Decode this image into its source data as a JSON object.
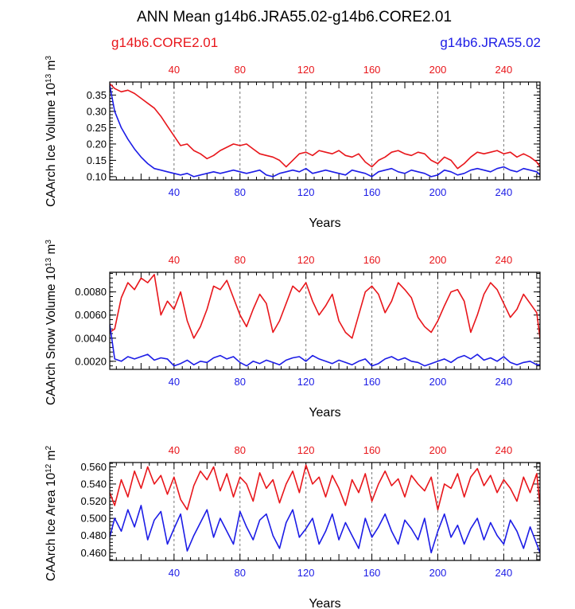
{
  "title": "ANN Mean g14b6.JRA55.02-g14b6.CORE2.01",
  "legend": {
    "left": "g14b6.CORE2.01",
    "right": "g14b6.JRA55.02"
  },
  "colors": {
    "red": "#e8161b",
    "blue": "#1c1ce6",
    "grid": "#777777"
  },
  "chart_data": [
    {
      "type": "line",
      "ylabel_main": "CAArch Ice Volume 10",
      "ylabel_exp": "13",
      "ylabel_unit": " m",
      "ylabel_unit_exp": "3",
      "xlabel": "Years",
      "xlim": [
        1,
        262
      ],
      "ylim": [
        0.09,
        0.39
      ],
      "yticks": [
        0.1,
        0.15,
        0.2,
        0.25,
        0.3,
        0.35
      ],
      "ytick_labels": [
        "0.10",
        "0.15",
        "0.20",
        "0.25",
        "0.30",
        "0.35"
      ],
      "xticks": [
        40,
        80,
        120,
        160,
        200,
        240
      ],
      "xtick_labels": [
        "40",
        "80",
        "120",
        "160",
        "200",
        "240"
      ],
      "series": [
        {
          "name": "g14b6.CORE2.01",
          "color": "red",
          "x": [
            1,
            4,
            8,
            12,
            16,
            20,
            24,
            28,
            32,
            36,
            40,
            44,
            48,
            52,
            56,
            60,
            64,
            68,
            72,
            76,
            80,
            84,
            88,
            92,
            96,
            100,
            104,
            108,
            112,
            116,
            120,
            124,
            128,
            132,
            136,
            140,
            144,
            148,
            152,
            156,
            160,
            164,
            168,
            172,
            176,
            180,
            184,
            188,
            192,
            196,
            200,
            204,
            208,
            212,
            216,
            220,
            224,
            228,
            232,
            236,
            240,
            244,
            248,
            252,
            256,
            260,
            262
          ],
          "values": [
            0.385,
            0.37,
            0.36,
            0.365,
            0.355,
            0.34,
            0.325,
            0.31,
            0.285,
            0.255,
            0.225,
            0.195,
            0.2,
            0.18,
            0.17,
            0.155,
            0.165,
            0.18,
            0.19,
            0.2,
            0.195,
            0.2,
            0.185,
            0.17,
            0.165,
            0.16,
            0.15,
            0.13,
            0.15,
            0.17,
            0.175,
            0.165,
            0.18,
            0.175,
            0.17,
            0.18,
            0.165,
            0.16,
            0.17,
            0.145,
            0.13,
            0.15,
            0.16,
            0.175,
            0.18,
            0.17,
            0.165,
            0.175,
            0.17,
            0.15,
            0.14,
            0.16,
            0.15,
            0.125,
            0.14,
            0.16,
            0.175,
            0.17,
            0.175,
            0.18,
            0.17,
            0.175,
            0.16,
            0.17,
            0.16,
            0.145,
            0.13
          ]
        },
        {
          "name": "g14b6.JRA55.02",
          "color": "blue",
          "x": [
            1,
            4,
            8,
            12,
            16,
            20,
            24,
            28,
            32,
            36,
            40,
            44,
            48,
            52,
            56,
            60,
            64,
            68,
            72,
            76,
            80,
            84,
            88,
            92,
            96,
            100,
            104,
            108,
            112,
            116,
            120,
            124,
            128,
            132,
            136,
            140,
            144,
            148,
            152,
            156,
            160,
            164,
            168,
            172,
            176,
            180,
            184,
            188,
            192,
            196,
            200,
            204,
            208,
            212,
            216,
            220,
            224,
            228,
            232,
            236,
            240,
            244,
            248,
            252,
            256,
            260,
            262
          ],
          "values": [
            0.38,
            0.3,
            0.25,
            0.215,
            0.185,
            0.16,
            0.14,
            0.125,
            0.12,
            0.115,
            0.11,
            0.105,
            0.11,
            0.1,
            0.105,
            0.11,
            0.115,
            0.11,
            0.115,
            0.12,
            0.115,
            0.11,
            0.115,
            0.12,
            0.105,
            0.1,
            0.11,
            0.115,
            0.12,
            0.115,
            0.125,
            0.11,
            0.115,
            0.12,
            0.115,
            0.11,
            0.105,
            0.12,
            0.115,
            0.11,
            0.1,
            0.115,
            0.12,
            0.125,
            0.115,
            0.11,
            0.12,
            0.115,
            0.11,
            0.1,
            0.105,
            0.12,
            0.115,
            0.105,
            0.11,
            0.12,
            0.125,
            0.12,
            0.115,
            0.125,
            0.13,
            0.12,
            0.115,
            0.125,
            0.12,
            0.115,
            0.105
          ]
        }
      ]
    },
    {
      "type": "line",
      "ylabel_main": "CAArch Snow Volume 10",
      "ylabel_exp": "13",
      "ylabel_unit": " m",
      "ylabel_unit_exp": "3",
      "xlabel": "Years",
      "xlim": [
        1,
        262
      ],
      "ylim": [
        0.0013,
        0.0097
      ],
      "yticks": [
        0.002,
        0.004,
        0.006,
        0.008
      ],
      "ytick_labels": [
        "0.0020",
        "0.0040",
        "0.0060",
        "0.0080"
      ],
      "xticks": [
        40,
        80,
        120,
        160,
        200,
        240
      ],
      "xtick_labels": [
        "40",
        "80",
        "120",
        "160",
        "200",
        "240"
      ],
      "series": [
        {
          "name": "g14b6.CORE2.01",
          "color": "red",
          "x": [
            1,
            4,
            8,
            12,
            16,
            20,
            24,
            28,
            32,
            36,
            40,
            44,
            48,
            52,
            56,
            60,
            64,
            68,
            72,
            76,
            80,
            84,
            88,
            92,
            96,
            100,
            104,
            108,
            112,
            116,
            120,
            124,
            128,
            132,
            136,
            140,
            144,
            148,
            152,
            156,
            160,
            164,
            168,
            172,
            176,
            180,
            184,
            188,
            192,
            196,
            200,
            204,
            208,
            212,
            216,
            220,
            224,
            228,
            232,
            236,
            240,
            244,
            248,
            252,
            256,
            260,
            262
          ],
          "values": [
            0.0045,
            0.0048,
            0.0075,
            0.0088,
            0.0082,
            0.0092,
            0.0088,
            0.0095,
            0.006,
            0.0072,
            0.0065,
            0.008,
            0.0055,
            0.004,
            0.005,
            0.0065,
            0.0085,
            0.0082,
            0.009,
            0.0075,
            0.006,
            0.005,
            0.0065,
            0.0078,
            0.007,
            0.0045,
            0.0055,
            0.007,
            0.0085,
            0.008,
            0.0088,
            0.0072,
            0.006,
            0.0068,
            0.0078,
            0.0055,
            0.0045,
            0.004,
            0.006,
            0.008,
            0.0085,
            0.0078,
            0.0062,
            0.0072,
            0.0088,
            0.0082,
            0.0075,
            0.0058,
            0.005,
            0.0045,
            0.0055,
            0.0068,
            0.008,
            0.0082,
            0.0072,
            0.0045,
            0.006,
            0.0078,
            0.0088,
            0.0082,
            0.007,
            0.0058,
            0.0065,
            0.0078,
            0.007,
            0.0062,
            0.004
          ]
        },
        {
          "name": "g14b6.JRA55.02",
          "color": "blue",
          "x": [
            1,
            4,
            8,
            12,
            16,
            20,
            24,
            28,
            32,
            36,
            40,
            44,
            48,
            52,
            56,
            60,
            64,
            68,
            72,
            76,
            80,
            84,
            88,
            92,
            96,
            100,
            104,
            108,
            112,
            116,
            120,
            124,
            128,
            132,
            136,
            140,
            144,
            148,
            152,
            156,
            160,
            164,
            168,
            172,
            176,
            180,
            184,
            188,
            192,
            196,
            200,
            204,
            208,
            212,
            216,
            220,
            224,
            228,
            232,
            236,
            240,
            244,
            248,
            252,
            256,
            260,
            262
          ],
          "values": [
            0.0052,
            0.0022,
            0.002,
            0.0024,
            0.0022,
            0.0024,
            0.0026,
            0.0021,
            0.0023,
            0.0022,
            0.0016,
            0.0018,
            0.0021,
            0.0017,
            0.002,
            0.0019,
            0.0023,
            0.0025,
            0.0022,
            0.0024,
            0.0019,
            0.0016,
            0.002,
            0.0018,
            0.0021,
            0.0019,
            0.0017,
            0.0021,
            0.0023,
            0.0024,
            0.002,
            0.0025,
            0.0022,
            0.002,
            0.0018,
            0.0021,
            0.0019,
            0.0017,
            0.002,
            0.0022,
            0.0016,
            0.0018,
            0.0022,
            0.0024,
            0.0021,
            0.0023,
            0.002,
            0.0019,
            0.0016,
            0.0018,
            0.002,
            0.0022,
            0.0019,
            0.0023,
            0.0025,
            0.0022,
            0.0026,
            0.0021,
            0.0023,
            0.002,
            0.0024,
            0.0019,
            0.0017,
            0.0019,
            0.002,
            0.0017,
            0.0017
          ]
        }
      ]
    },
    {
      "type": "line",
      "ylabel_main": "CAArch Ice Area 10",
      "ylabel_exp": "12",
      "ylabel_unit": " m",
      "ylabel_unit_exp": "2",
      "xlabel": "Years",
      "xlim": [
        1,
        262
      ],
      "ylim": [
        0.451,
        0.565
      ],
      "yticks": [
        0.46,
        0.48,
        0.5,
        0.52,
        0.54,
        0.56
      ],
      "ytick_labels": [
        "0.460",
        "0.480",
        "0.500",
        "0.520",
        "0.540",
        "0.560"
      ],
      "xticks": [
        40,
        80,
        120,
        160,
        200,
        240
      ],
      "xtick_labels": [
        "40",
        "80",
        "120",
        "160",
        "200",
        "240"
      ],
      "series": [
        {
          "name": "g14b6.CORE2.01",
          "color": "red",
          "x": [
            1,
            4,
            8,
            12,
            16,
            20,
            24,
            28,
            32,
            36,
            40,
            44,
            48,
            52,
            56,
            60,
            64,
            68,
            72,
            76,
            80,
            84,
            88,
            92,
            96,
            100,
            104,
            108,
            112,
            116,
            120,
            124,
            128,
            132,
            136,
            140,
            144,
            148,
            152,
            156,
            160,
            164,
            168,
            172,
            176,
            180,
            184,
            188,
            192,
            196,
            200,
            204,
            208,
            212,
            216,
            220,
            224,
            228,
            232,
            236,
            240,
            244,
            248,
            252,
            256,
            260,
            262
          ],
          "values": [
            0.53,
            0.515,
            0.545,
            0.525,
            0.555,
            0.535,
            0.56,
            0.54,
            0.55,
            0.528,
            0.548,
            0.522,
            0.51,
            0.538,
            0.555,
            0.545,
            0.56,
            0.532,
            0.552,
            0.525,
            0.548,
            0.54,
            0.52,
            0.553,
            0.535,
            0.545,
            0.518,
            0.54,
            0.555,
            0.53,
            0.562,
            0.54,
            0.548,
            0.525,
            0.55,
            0.535,
            0.515,
            0.545,
            0.53,
            0.552,
            0.52,
            0.54,
            0.555,
            0.538,
            0.546,
            0.525,
            0.55,
            0.54,
            0.532,
            0.548,
            0.51,
            0.54,
            0.535,
            0.552,
            0.525,
            0.548,
            0.558,
            0.538,
            0.55,
            0.53,
            0.545,
            0.535,
            0.52,
            0.548,
            0.53,
            0.552,
            0.515
          ]
        },
        {
          "name": "g14b6.JRA55.02",
          "color": "blue",
          "x": [
            1,
            4,
            8,
            12,
            16,
            20,
            24,
            28,
            32,
            36,
            40,
            44,
            48,
            52,
            56,
            60,
            64,
            68,
            72,
            76,
            80,
            84,
            88,
            92,
            96,
            100,
            104,
            108,
            112,
            116,
            120,
            124,
            128,
            132,
            136,
            140,
            144,
            148,
            152,
            156,
            160,
            164,
            168,
            172,
            176,
            180,
            184,
            188,
            192,
            196,
            200,
            204,
            208,
            212,
            216,
            220,
            224,
            228,
            232,
            236,
            240,
            244,
            248,
            252,
            256,
            260,
            262
          ],
          "values": [
            0.478,
            0.5,
            0.485,
            0.51,
            0.49,
            0.515,
            0.475,
            0.498,
            0.508,
            0.47,
            0.488,
            0.505,
            0.462,
            0.48,
            0.495,
            0.51,
            0.478,
            0.5,
            0.485,
            0.47,
            0.508,
            0.49,
            0.475,
            0.498,
            0.505,
            0.48,
            0.465,
            0.495,
            0.51,
            0.478,
            0.488,
            0.5,
            0.47,
            0.485,
            0.505,
            0.475,
            0.495,
            0.48,
            0.465,
            0.5,
            0.478,
            0.49,
            0.505,
            0.485,
            0.47,
            0.498,
            0.488,
            0.475,
            0.5,
            0.46,
            0.485,
            0.505,
            0.478,
            0.492,
            0.47,
            0.488,
            0.5,
            0.475,
            0.495,
            0.48,
            0.47,
            0.498,
            0.485,
            0.465,
            0.49,
            0.47,
            0.46
          ]
        }
      ]
    }
  ]
}
